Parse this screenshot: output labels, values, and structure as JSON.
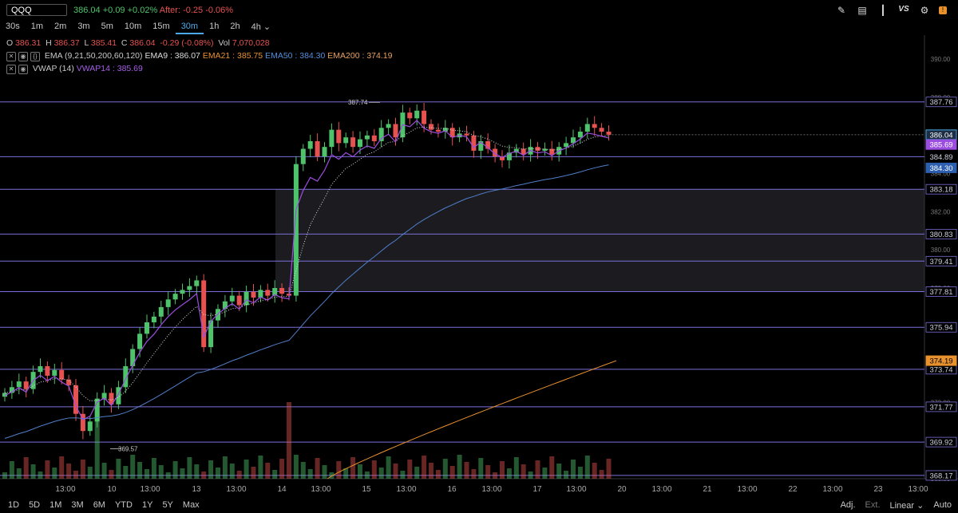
{
  "symbol": "QQQ",
  "quote": {
    "last": "386.04",
    "change": "+0.09",
    "change_pct": "+0.02%",
    "after_label": "After:",
    "after_change": "-0.25",
    "after_pct": "-0.06%"
  },
  "toolbar_icons": [
    "pencil-icon",
    "chart-type-icon",
    "indicators-icon",
    "compare-icon",
    "settings-icon",
    "alert-icon"
  ],
  "toolbar_labels": {
    "compare": "VS"
  },
  "intervals": [
    "30s",
    "1m",
    "2m",
    "3m",
    "5m",
    "10m",
    "15m",
    "30m",
    "1h",
    "2h",
    "4h"
  ],
  "active_interval": "30m",
  "ohlc": {
    "o_label": "O",
    "o": "386.31",
    "h_label": "H",
    "h": "386.37",
    "l_label": "L",
    "l": "385.41",
    "c_label": "C",
    "c": "386.04",
    "chg": "-0.29 (-0.08%)",
    "vol_label": "Vol",
    "vol": "7,070,028"
  },
  "ema_legend": {
    "name": "EMA (9,21,50,200,60,120)",
    "ema9": "EMA9 : 386.07",
    "ema21": "EMA21 : 385.75",
    "ema50": "EMA50 : 384.30",
    "ema200": "EMA200 : 374.19"
  },
  "vwap_legend": {
    "name": "VWAP (14)",
    "vwap14": "VWAP14 : 385.69"
  },
  "ranges": [
    "1D",
    "5D",
    "1M",
    "3M",
    "6M",
    "YTD",
    "1Y",
    "5Y",
    "Max"
  ],
  "bottom_options": {
    "adj": "Adj.",
    "ext": "Ext.",
    "scale": "Linear",
    "auto": "Auto"
  },
  "colors": {
    "up": "#4fc36b",
    "down": "#e5524f",
    "vwap": "#9b4de0",
    "ema50": "#4f7fc9",
    "ema200": "#e8912d",
    "ema21": "#dddddd",
    "levels": "#7a6fd8"
  },
  "chart_data": {
    "type": "candlestick",
    "y_axis_ticks": [
      "390.00",
      "388.00",
      "384.00",
      "382.00",
      "380.00",
      "378.00",
      "376.00",
      "372.00",
      "370.00",
      "368.00"
    ],
    "x_axis_labels": [
      "13:00",
      "10",
      "13:00",
      "13",
      "13:00",
      "14",
      "13:00",
      "15",
      "13:00",
      "16",
      "13:00",
      "17",
      "13:00",
      "20",
      "13:00",
      "21",
      "13:00",
      "22",
      "13:00",
      "23",
      "13:00"
    ],
    "level_lines": [
      387.76,
      383.18,
      380.83,
      379.41,
      377.81,
      375.94,
      373.74,
      371.77,
      369.92,
      368.17
    ],
    "extra_level": 384.89,
    "price_labels": [
      {
        "value": "386.04",
        "style": "last"
      },
      {
        "value": "385.69",
        "style": "vwap"
      },
      {
        "value": "384.30",
        "style": "ema50"
      },
      {
        "value": "374.19",
        "style": "ema200"
      }
    ],
    "annotations": [
      {
        "text": "387.74",
        "price": 387.74
      },
      {
        "text": "369.57",
        "price": 369.57
      }
    ],
    "shaded_zone": [
      377.81,
      383.18
    ],
    "closes": [
      372.5,
      372.8,
      373.1,
      372.7,
      373.6,
      373.9,
      373.4,
      373.7,
      373.2,
      372.9,
      371.4,
      370.5,
      371.0,
      372.2,
      372.5,
      371.9,
      372.8,
      373.9,
      374.8,
      375.6,
      376.2,
      376.5,
      377.0,
      377.4,
      377.7,
      377.9,
      378.1,
      378.4,
      374.9,
      376.3,
      376.9,
      377.3,
      377.6,
      377.1,
      377.8,
      377.5,
      377.9,
      377.6,
      378.0,
      377.7,
      377.6,
      384.5,
      385.3,
      385.7,
      384.9,
      385.4,
      386.3,
      385.6,
      385.9,
      385.4,
      385.8,
      386.0,
      385.7,
      386.4,
      386.6,
      385.9,
      387.2,
      386.9,
      387.3,
      386.6,
      386.3,
      386.2,
      386.4,
      385.9,
      386.1,
      386.0,
      385.2,
      385.7,
      385.3,
      384.9,
      384.7,
      385.1,
      385.3,
      385.0,
      385.4,
      385.2,
      385.3,
      385.0,
      385.4,
      385.6,
      385.9,
      386.2,
      386.6,
      386.4,
      386.2,
      386.04
    ],
    "volume_scale_note": "relative"
  }
}
